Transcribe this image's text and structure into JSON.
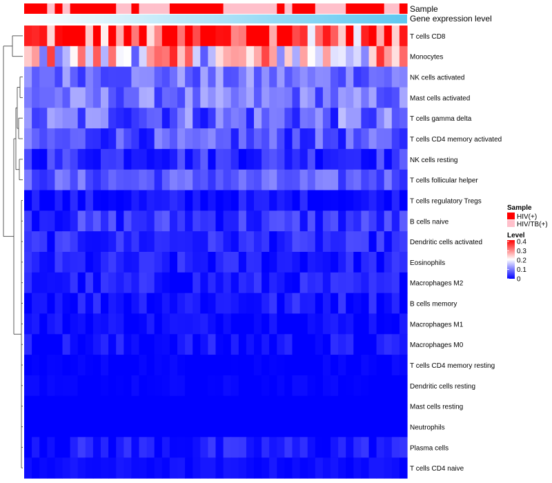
{
  "chart_data": {
    "type": "heatmap",
    "title": "",
    "annotation_rows": [
      "Sample",
      "Gene expression level"
    ],
    "columns_per_row": 50,
    "sample_groups": [
      "HIV(+)",
      "HIV/TB(+)"
    ],
    "sample_colors": {
      "HIV(+)": "#ff0000",
      "HIV/TB(+)": "#ffc0cb"
    },
    "sample_annotation": [
      0,
      0,
      0,
      1,
      0,
      1,
      0,
      0,
      0,
      0,
      0,
      0,
      1,
      1,
      0,
      1,
      1,
      1,
      1,
      0,
      0,
      0,
      0,
      0,
      0,
      0,
      1,
      1,
      1,
      1,
      1,
      1,
      1,
      0,
      1,
      0,
      0,
      0,
      1,
      1,
      1,
      1,
      0,
      0,
      0,
      0,
      0,
      1,
      1,
      0
    ],
    "gene_expression_colors": [
      "#ffffff",
      "#5ec7f0"
    ],
    "row_labels": [
      "T cells CD8",
      "Monocytes",
      "NK cells activated",
      "Mast cells activated",
      "T cells gamma delta",
      "T cells CD4 memory activated",
      "NK cells resting",
      "T cells follicular helper",
      "T cells regulatory  Tregs",
      "B cells naive",
      "Dendritic cells activated",
      "Eosinophils",
      "Macrophages M2",
      "B cells memory",
      "Macrophages M1",
      "Macrophages M0",
      "T cells CD4 memory resting",
      "Dendritic cells resting",
      "Mast cells resting",
      "Neutrophils",
      "Plasma cells",
      "T cells CD4 naive"
    ],
    "row_means": [
      0.33,
      0.22,
      0.09,
      0.09,
      0.08,
      0.06,
      0.04,
      0.07,
      0.01,
      0.04,
      0.03,
      0.02,
      0.02,
      0.02,
      0.01,
      0.01,
      0.0,
      0.0,
      0.0,
      0.0,
      0.02,
      0.01
    ],
    "row_spread": [
      0.15,
      0.15,
      0.05,
      0.05,
      0.07,
      0.05,
      0.04,
      0.04,
      0.03,
      0.04,
      0.03,
      0.03,
      0.03,
      0.03,
      0.02,
      0.03,
      0.01,
      0.01,
      0.0,
      0.0,
      0.03,
      0.01
    ],
    "legend": {
      "sample_title": "Sample",
      "level_title": "Level",
      "level_ticks": [
        "0.4",
        "0.3",
        "0.2",
        "0.1",
        "0"
      ],
      "level_range": [
        0,
        0.4
      ],
      "colors": {
        "low": "#0000ff",
        "mid": "#ffffff",
        "high": "#ff0000"
      }
    }
  }
}
